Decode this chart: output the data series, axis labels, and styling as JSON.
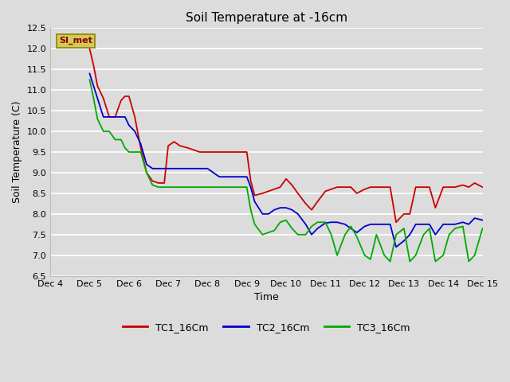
{
  "title": "Soil Temperature at -16cm",
  "xlabel": "Time",
  "ylabel": "Soil Temperature (C)",
  "ylim": [
    6.5,
    12.5
  ],
  "xlim": [
    4,
    15
  ],
  "background_color": "#dcdcdc",
  "plot_bg_color": "#dcdcdc",
  "watermark_text": "SI_met",
  "watermark_bg": "#d4c85a",
  "watermark_fg": "#8b0000",
  "legend_labels": [
    "TC1_16Cm",
    "TC2_16Cm",
    "TC3_16Cm"
  ],
  "legend_colors": [
    "#cc0000",
    "#0000cc",
    "#00aa00"
  ],
  "series": {
    "TC1_16Cm": {
      "color": "#cc0000",
      "x": [
        5.0,
        5.1,
        5.2,
        5.35,
        5.5,
        5.65,
        5.8,
        5.9,
        6.0,
        6.15,
        6.3,
        6.45,
        6.6,
        6.75,
        6.9,
        7.0,
        7.15,
        7.3,
        7.5,
        7.65,
        7.8,
        8.0,
        8.15,
        8.3,
        8.5,
        8.65,
        8.8,
        9.0,
        9.1,
        9.2,
        9.4,
        9.55,
        9.7,
        9.85,
        10.0,
        10.15,
        10.3,
        10.5,
        10.65,
        10.8,
        11.0,
        11.15,
        11.3,
        11.5,
        11.65,
        11.8,
        12.0,
        12.15,
        12.3,
        12.5,
        12.65,
        12.8,
        13.0,
        13.15,
        13.3,
        13.5,
        13.65,
        13.8,
        14.0,
        14.15,
        14.3,
        14.5,
        14.65,
        14.8,
        15.0
      ],
      "y": [
        12.0,
        11.6,
        11.1,
        10.8,
        10.35,
        10.35,
        10.75,
        10.85,
        10.85,
        10.35,
        9.6,
        9.0,
        8.8,
        8.75,
        8.75,
        9.65,
        9.75,
        9.65,
        9.6,
        9.55,
        9.5,
        9.5,
        9.5,
        9.5,
        9.5,
        9.5,
        9.5,
        9.5,
        8.8,
        8.45,
        8.5,
        8.55,
        8.6,
        8.65,
        8.85,
        8.7,
        8.5,
        8.25,
        8.1,
        8.3,
        8.55,
        8.6,
        8.65,
        8.65,
        8.65,
        8.5,
        8.6,
        8.65,
        8.65,
        8.65,
        8.65,
        7.8,
        8.0,
        8.0,
        8.65,
        8.65,
        8.65,
        8.15,
        8.65,
        8.65,
        8.65,
        8.7,
        8.65,
        8.75,
        8.65
      ]
    },
    "TC2_16Cm": {
      "color": "#0000cc",
      "x": [
        5.0,
        5.1,
        5.2,
        5.35,
        5.5,
        5.65,
        5.8,
        5.9,
        6.0,
        6.15,
        6.3,
        6.45,
        6.6,
        6.75,
        6.9,
        7.0,
        7.15,
        7.3,
        7.5,
        7.65,
        7.8,
        8.0,
        8.15,
        8.3,
        8.5,
        8.65,
        8.8,
        9.0,
        9.1,
        9.2,
        9.4,
        9.55,
        9.7,
        9.85,
        10.0,
        10.15,
        10.3,
        10.5,
        10.65,
        10.8,
        11.0,
        11.15,
        11.3,
        11.5,
        11.65,
        11.8,
        12.0,
        12.15,
        12.3,
        12.5,
        12.65,
        12.8,
        13.0,
        13.15,
        13.3,
        13.5,
        13.65,
        13.8,
        14.0,
        14.15,
        14.3,
        14.5,
        14.65,
        14.8,
        15.0
      ],
      "y": [
        11.4,
        11.1,
        10.8,
        10.35,
        10.35,
        10.35,
        10.35,
        10.35,
        10.15,
        10.0,
        9.7,
        9.2,
        9.1,
        9.1,
        9.1,
        9.1,
        9.1,
        9.1,
        9.1,
        9.1,
        9.1,
        9.1,
        9.0,
        8.9,
        8.9,
        8.9,
        8.9,
        8.9,
        8.65,
        8.3,
        8.0,
        8.0,
        8.1,
        8.15,
        8.15,
        8.1,
        8.0,
        7.75,
        7.5,
        7.65,
        7.78,
        7.8,
        7.8,
        7.75,
        7.65,
        7.55,
        7.7,
        7.75,
        7.75,
        7.75,
        7.75,
        7.2,
        7.35,
        7.5,
        7.75,
        7.75,
        7.75,
        7.5,
        7.75,
        7.75,
        7.75,
        7.8,
        7.75,
        7.9,
        7.85
      ]
    },
    "TC3_16Cm": {
      "color": "#00aa00",
      "x": [
        5.0,
        5.1,
        5.2,
        5.35,
        5.5,
        5.65,
        5.8,
        5.9,
        6.0,
        6.15,
        6.3,
        6.45,
        6.6,
        6.75,
        6.9,
        7.0,
        7.15,
        7.3,
        7.5,
        7.65,
        7.8,
        8.0,
        8.15,
        8.3,
        8.5,
        8.65,
        8.8,
        9.0,
        9.1,
        9.2,
        9.4,
        9.55,
        9.7,
        9.85,
        10.0,
        10.15,
        10.3,
        10.5,
        10.65,
        10.8,
        11.0,
        11.15,
        11.3,
        11.5,
        11.65,
        11.8,
        12.0,
        12.15,
        12.3,
        12.5,
        12.65,
        12.8,
        13.0,
        13.15,
        13.3,
        13.5,
        13.65,
        13.8,
        14.0,
        14.15,
        14.3,
        14.5,
        14.65,
        14.8,
        15.0
      ],
      "y": [
        11.25,
        10.8,
        10.3,
        10.0,
        10.0,
        9.8,
        9.8,
        9.6,
        9.5,
        9.5,
        9.5,
        9.0,
        8.7,
        8.65,
        8.65,
        8.65,
        8.65,
        8.65,
        8.65,
        8.65,
        8.65,
        8.65,
        8.65,
        8.65,
        8.65,
        8.65,
        8.65,
        8.65,
        8.1,
        7.75,
        7.5,
        7.55,
        7.6,
        7.8,
        7.85,
        7.65,
        7.5,
        7.5,
        7.7,
        7.8,
        7.8,
        7.5,
        7.0,
        7.5,
        7.7,
        7.45,
        7.0,
        6.9,
        7.5,
        7.0,
        6.85,
        7.5,
        7.65,
        6.85,
        7.0,
        7.5,
        7.65,
        6.85,
        7.0,
        7.5,
        7.65,
        7.7,
        6.85,
        7.0,
        7.65
      ]
    }
  },
  "xtick_positions": [
    4,
    5,
    6,
    7,
    8,
    9,
    10,
    11,
    12,
    13,
    14,
    15
  ],
  "xtick_labels": [
    "Dec 4",
    "Dec 5",
    "Dec 6",
    "Dec 7",
    "Dec 8",
    "Dec 9",
    "Dec 10",
    "Dec 11",
    "Dec 12",
    "Dec 13",
    "Dec 14",
    "Dec 15"
  ],
  "ytick_interval": 0.5
}
